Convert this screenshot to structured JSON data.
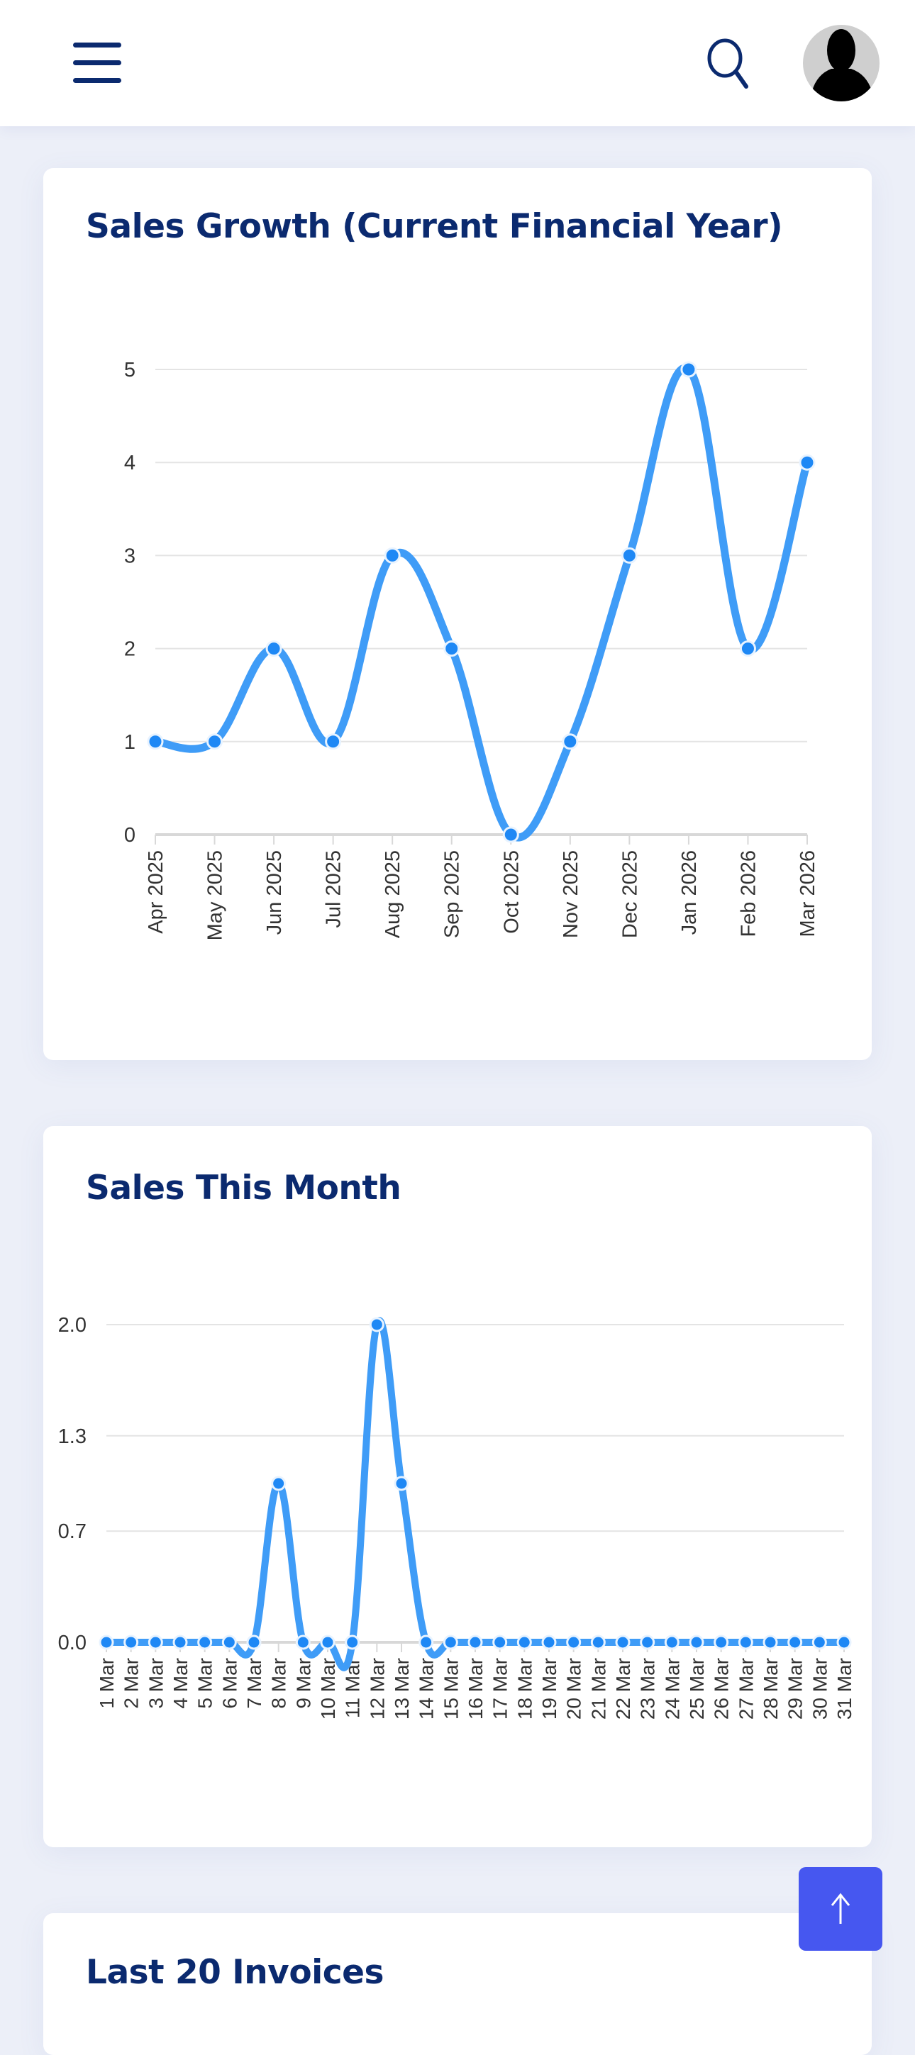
{
  "header": {
    "menu_icon": "hamburger-icon",
    "search_icon": "search-icon",
    "avatar_icon": "user-avatar"
  },
  "cards": {
    "sales_growth_title": "Sales Growth (Current Financial Year)",
    "sales_month_title": "Sales This Month",
    "invoices_title": "Last 20 Invoices"
  },
  "colors": {
    "line": "#3f9cf7",
    "point": "#1e88f5",
    "title": "#0b2a6f",
    "scroll_button": "#4657f0"
  },
  "chart_data": [
    {
      "type": "line",
      "title": "Sales Growth (Current Financial Year)",
      "categories": [
        "Apr 2025",
        "May 2025",
        "Jun 2025",
        "Jul 2025",
        "Aug 2025",
        "Sep 2025",
        "Oct 2025",
        "Nov 2025",
        "Dec 2025",
        "Jan 2026",
        "Feb 2026",
        "Mar 2026"
      ],
      "values": [
        1,
        1,
        2,
        1,
        3,
        2,
        0,
        1,
        3,
        5,
        2,
        4
      ],
      "yticks": [
        "0",
        "1",
        "2",
        "3",
        "4",
        "5"
      ],
      "ylim": [
        0,
        5
      ],
      "grid": true,
      "xlabel": "",
      "ylabel": ""
    },
    {
      "type": "line",
      "title": "Sales This Month",
      "categories": [
        "1 Mar",
        "2 Mar",
        "3 Mar",
        "4 Mar",
        "5 Mar",
        "6 Mar",
        "7 Mar",
        "8 Mar",
        "9 Mar",
        "10 Mar",
        "11 Mar",
        "12 Mar",
        "13 Mar",
        "14 Mar",
        "15 Mar",
        "16 Mar",
        "17 Mar",
        "18 Mar",
        "19 Mar",
        "20 Mar",
        "21 Mar",
        "22 Mar",
        "23 Mar",
        "24 Mar",
        "25 Mar",
        "26 Mar",
        "27 Mar",
        "28 Mar",
        "29 Mar",
        "30 Mar",
        "31 Mar"
      ],
      "values": [
        0,
        0,
        0,
        0,
        0,
        0,
        0,
        1,
        0,
        0,
        0,
        2,
        1,
        0,
        0,
        0,
        0,
        0,
        0,
        0,
        0,
        0,
        0,
        0,
        0,
        0,
        0,
        0,
        0,
        0,
        0
      ],
      "yticks": [
        "0.0",
        "0.7",
        "1.3",
        "2.0"
      ],
      "ylim": [
        0,
        2
      ],
      "grid": true,
      "xlabel": "",
      "ylabel": ""
    }
  ]
}
